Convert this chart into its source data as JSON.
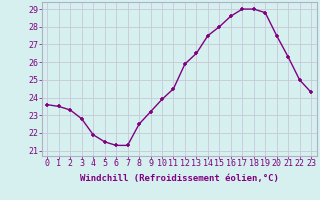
{
  "x": [
    0,
    1,
    2,
    3,
    4,
    5,
    6,
    7,
    8,
    9,
    10,
    11,
    12,
    13,
    14,
    15,
    16,
    17,
    18,
    19,
    20,
    21,
    22,
    23
  ],
  "y": [
    23.6,
    23.5,
    23.3,
    22.8,
    21.9,
    21.5,
    21.3,
    21.3,
    22.5,
    23.2,
    23.9,
    24.5,
    25.9,
    26.5,
    27.5,
    28.0,
    28.6,
    29.0,
    29.0,
    28.8,
    27.5,
    26.3,
    25.0,
    24.3
  ],
  "line_color": "#800080",
  "marker_color": "#800080",
  "bg_color": "#d6f0f0",
  "grid_color": "#c8c8d8",
  "xlabel": "Windchill (Refroidissement éolien,°C)",
  "ylim": [
    20.7,
    29.4
  ],
  "xlim": [
    -0.5,
    23.5
  ],
  "yticks": [
    21,
    22,
    23,
    24,
    25,
    26,
    27,
    28,
    29
  ],
  "xticks": [
    0,
    1,
    2,
    3,
    4,
    5,
    6,
    7,
    8,
    9,
    10,
    11,
    12,
    13,
    14,
    15,
    16,
    17,
    18,
    19,
    20,
    21,
    22,
    23
  ],
  "xtick_labels": [
    "0",
    "1",
    "2",
    "3",
    "4",
    "5",
    "6",
    "7",
    "8",
    "9",
    "10",
    "11",
    "12",
    "13",
    "14",
    "15",
    "16",
    "17",
    "18",
    "19",
    "20",
    "21",
    "22",
    "23"
  ],
  "xlabel_fontsize": 6.5,
  "tick_fontsize": 6.0,
  "linewidth": 1.0,
  "markersize": 3.5,
  "label_color": "#800080"
}
